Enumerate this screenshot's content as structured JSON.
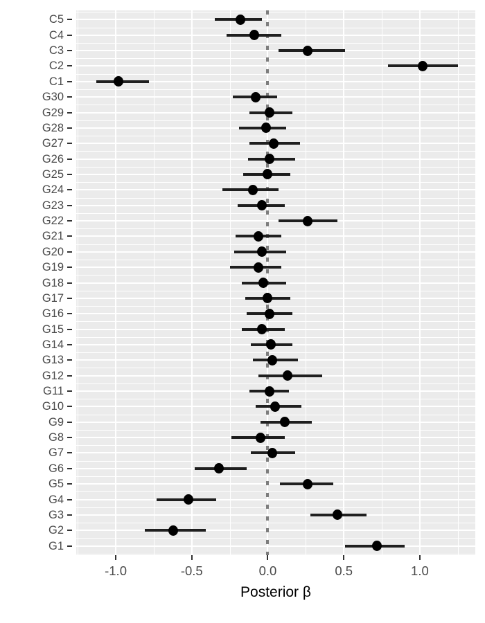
{
  "colors": {
    "panel_background": "#EBEBEB",
    "gridline": "#FFFFFF",
    "point": "#000000",
    "interval_bar": "#1F1F1F",
    "reference_line": "#7D7D7D",
    "axis_text": "#4A4A4A",
    "axis_title": "#000000",
    "tick_mark": "#333333"
  },
  "chart_data": {
    "type": "scatter",
    "subtype": "pointrange-forest-plot",
    "orientation": "horizontal",
    "title": "",
    "xlabel": "Posterior β",
    "ylabel": "",
    "grid": "on",
    "legend": "none",
    "x_axis": {
      "min": -1.26,
      "max": 1.365,
      "major_ticks": [
        -1.0,
        -0.5,
        0.0,
        0.5,
        1.0
      ],
      "tick_labels": [
        "-1.0",
        "-0.5",
        "0.0",
        "0.5",
        "1.0"
      ],
      "minor_ticks": [
        -1.25,
        -0.75,
        -0.25,
        0.25,
        0.75,
        1.25
      ]
    },
    "reference_line": {
      "x": 0.0,
      "style": "dotted"
    },
    "categories_top_to_bottom": [
      "C5",
      "C4",
      "C3",
      "C2",
      "C1",
      "G30",
      "G29",
      "G28",
      "G27",
      "G26",
      "G25",
      "G24",
      "G23",
      "G22",
      "G21",
      "G20",
      "G19",
      "G18",
      "G17",
      "G16",
      "G15",
      "G14",
      "G13",
      "G12",
      "G11",
      "G10",
      "G9",
      "G8",
      "G7",
      "G6",
      "G5",
      "G4",
      "G3",
      "G2",
      "G1"
    ],
    "points": [
      {
        "label": "C5",
        "est": -0.18,
        "lo": -0.35,
        "hi": -0.04
      },
      {
        "label": "C4",
        "est": -0.09,
        "lo": -0.27,
        "hi": 0.09
      },
      {
        "label": "C3",
        "est": 0.26,
        "lo": 0.07,
        "hi": 0.51
      },
      {
        "label": "C2",
        "est": 1.02,
        "lo": 0.79,
        "hi": 1.25
      },
      {
        "label": "C1",
        "est": -0.98,
        "lo": -1.13,
        "hi": -0.78
      },
      {
        "label": "G30",
        "est": -0.08,
        "lo": -0.23,
        "hi": 0.06
      },
      {
        "label": "G29",
        "est": 0.01,
        "lo": -0.12,
        "hi": 0.16
      },
      {
        "label": "G28",
        "est": -0.01,
        "lo": -0.19,
        "hi": 0.12
      },
      {
        "label": "G27",
        "est": 0.04,
        "lo": -0.12,
        "hi": 0.21
      },
      {
        "label": "G26",
        "est": 0.01,
        "lo": -0.13,
        "hi": 0.18
      },
      {
        "label": "G25",
        "est": 0.0,
        "lo": -0.16,
        "hi": 0.15
      },
      {
        "label": "G24",
        "est": -0.1,
        "lo": -0.3,
        "hi": 0.07
      },
      {
        "label": "G23",
        "est": -0.04,
        "lo": -0.2,
        "hi": 0.11
      },
      {
        "label": "G22",
        "est": 0.26,
        "lo": 0.07,
        "hi": 0.46
      },
      {
        "label": "G21",
        "est": -0.06,
        "lo": -0.21,
        "hi": 0.09
      },
      {
        "label": "G20",
        "est": -0.04,
        "lo": -0.22,
        "hi": 0.12
      },
      {
        "label": "G19",
        "est": -0.06,
        "lo": -0.25,
        "hi": 0.09
      },
      {
        "label": "G18",
        "est": -0.03,
        "lo": -0.17,
        "hi": 0.12
      },
      {
        "label": "G17",
        "est": 0.0,
        "lo": -0.15,
        "hi": 0.15
      },
      {
        "label": "G16",
        "est": 0.01,
        "lo": -0.14,
        "hi": 0.16
      },
      {
        "label": "G15",
        "est": -0.04,
        "lo": -0.17,
        "hi": 0.11
      },
      {
        "label": "G14",
        "est": 0.02,
        "lo": -0.11,
        "hi": 0.16
      },
      {
        "label": "G13",
        "est": 0.03,
        "lo": -0.1,
        "hi": 0.2
      },
      {
        "label": "G12",
        "est": 0.13,
        "lo": -0.06,
        "hi": 0.36
      },
      {
        "label": "G11",
        "est": 0.01,
        "lo": -0.12,
        "hi": 0.14
      },
      {
        "label": "G10",
        "est": 0.05,
        "lo": -0.08,
        "hi": 0.22
      },
      {
        "label": "G9",
        "est": 0.11,
        "lo": -0.05,
        "hi": 0.29
      },
      {
        "label": "G8",
        "est": -0.05,
        "lo": -0.24,
        "hi": 0.11
      },
      {
        "label": "G7",
        "est": 0.03,
        "lo": -0.11,
        "hi": 0.18
      },
      {
        "label": "G6",
        "est": -0.32,
        "lo": -0.48,
        "hi": -0.14
      },
      {
        "label": "G5",
        "est": 0.26,
        "lo": 0.08,
        "hi": 0.43
      },
      {
        "label": "G4",
        "est": -0.52,
        "lo": -0.73,
        "hi": -0.34
      },
      {
        "label": "G3",
        "est": 0.46,
        "lo": 0.28,
        "hi": 0.65
      },
      {
        "label": "G2",
        "est": -0.62,
        "lo": -0.81,
        "hi": -0.41
      },
      {
        "label": "G1",
        "est": 0.72,
        "lo": 0.51,
        "hi": 0.9
      }
    ]
  }
}
